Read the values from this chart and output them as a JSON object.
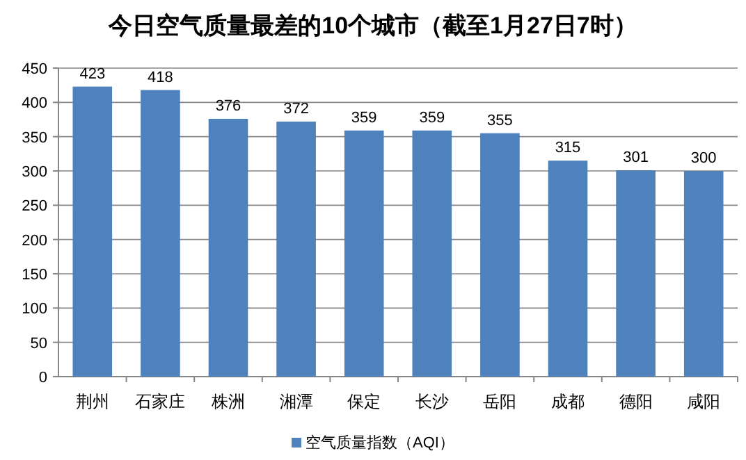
{
  "chart_data": {
    "type": "bar",
    "title": "今日空气质量最差的10个城市（截至1月27日7时）",
    "categories": [
      "荆州",
      "石家庄",
      "株洲",
      "湘潭",
      "保定",
      "长沙",
      "岳阳",
      "成都",
      "德阳",
      "咸阳"
    ],
    "series": [
      {
        "name": "空气质量指数（AQI）",
        "color": "#4f81bd",
        "values": [
          423,
          418,
          376,
          372,
          359,
          359,
          355,
          315,
          301,
          300
        ]
      }
    ],
    "ylim": [
      0,
      450
    ],
    "yticks": [
      0,
      50,
      100,
      150,
      200,
      250,
      300,
      350,
      400,
      450
    ],
    "grid": "y",
    "legend": "bottom",
    "data_labels": true
  }
}
